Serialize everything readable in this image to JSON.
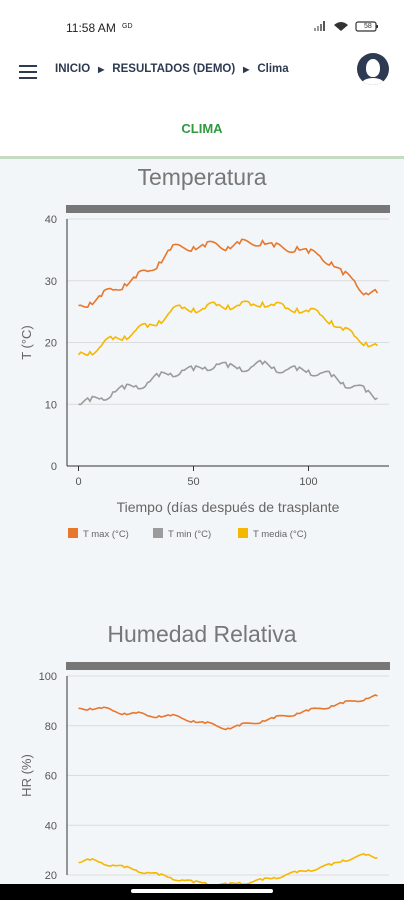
{
  "status_bar": {
    "time": "11:58 AM",
    "time_badge": "GD",
    "battery": "58"
  },
  "nav": {
    "breadcrumbs": [
      {
        "label": "INICIO"
      },
      {
        "label": "RESULTADOS (DEMO)"
      },
      {
        "label": "Clima"
      }
    ]
  },
  "tabs": [
    {
      "label": "CLIMA",
      "active": true
    }
  ],
  "icons": {
    "menu": "hamburger-menu-icon",
    "avatar": "user-avatar-icon",
    "separator": "caret-right-icon"
  },
  "colors": {
    "accent": "#2e9a3d",
    "navy": "#2d3a52",
    "tmax": "#e8772e",
    "tmin": "#9b9b9b",
    "tmedia": "#f5b800"
  },
  "chart_data": [
    {
      "type": "line",
      "title": "Temperatura",
      "xlabel": "Tiempo (días después de trasplante",
      "ylabel": "T (°C)",
      "xlim": [
        -5,
        135
      ],
      "ylim": [
        0,
        40
      ],
      "xticks": [
        0,
        50,
        100
      ],
      "yticks": [
        0,
        10,
        20,
        30,
        40
      ],
      "grid": true,
      "legend": "bottom",
      "x_step": 5,
      "series": [
        {
          "name": "T max (°C)",
          "color": "#e8772e",
          "values": [
            26.0,
            26.5,
            27.5,
            28.5,
            29.5,
            30.5,
            31.5,
            33.0,
            35.0,
            35.5,
            35.5,
            35.5,
            36.0,
            35.5,
            36.0,
            36.0,
            36.5,
            35.5,
            35.0,
            35.5,
            34.5,
            34.0,
            33.0,
            31.0,
            30.0,
            28.0,
            28.0
          ]
        },
        {
          "name": "T min (°C)",
          "color": "#9b9b9b",
          "values": [
            10.0,
            10.5,
            11.0,
            12.0,
            12.5,
            13.0,
            13.5,
            14.5,
            15.0,
            15.5,
            15.5,
            16.0,
            16.5,
            16.0,
            16.0,
            16.0,
            16.5,
            16.0,
            15.5,
            15.5,
            15.5,
            15.0,
            14.5,
            13.5,
            13.0,
            12.0,
            11.0
          ]
        },
        {
          "name": "T media (°C)",
          "color": "#f5b800",
          "values": [
            18.0,
            18.5,
            19.5,
            20.5,
            21.0,
            22.0,
            22.5,
            23.5,
            25.0,
            25.5,
            25.5,
            25.5,
            26.0,
            26.0,
            26.0,
            26.0,
            26.5,
            26.0,
            25.5,
            25.5,
            25.0,
            24.5,
            23.5,
            22.0,
            21.0,
            20.0,
            19.5
          ]
        }
      ]
    },
    {
      "type": "line",
      "title": "Humedad Relativa",
      "xlabel": "",
      "ylabel": "HR (%)",
      "xlim": [
        -5,
        135
      ],
      "ylim": [
        20,
        100
      ],
      "yticks": [
        20,
        40,
        60,
        80,
        100
      ],
      "grid": true,
      "x_step": 5,
      "series": [
        {
          "color": "#e8772e",
          "values": [
            87,
            87,
            87,
            86,
            85,
            85,
            84,
            84,
            84,
            83,
            82,
            81,
            80,
            79,
            80,
            81,
            82,
            83,
            84,
            85,
            86,
            87,
            88,
            89,
            90,
            91,
            92
          ]
        },
        {
          "color": "#f5b800",
          "values": [
            25,
            26,
            25,
            24,
            23,
            22,
            21,
            20,
            19,
            18,
            17,
            17,
            16,
            16,
            17,
            17,
            18,
            19,
            20,
            21,
            22,
            23,
            24,
            26,
            27,
            28,
            27
          ]
        }
      ]
    }
  ]
}
